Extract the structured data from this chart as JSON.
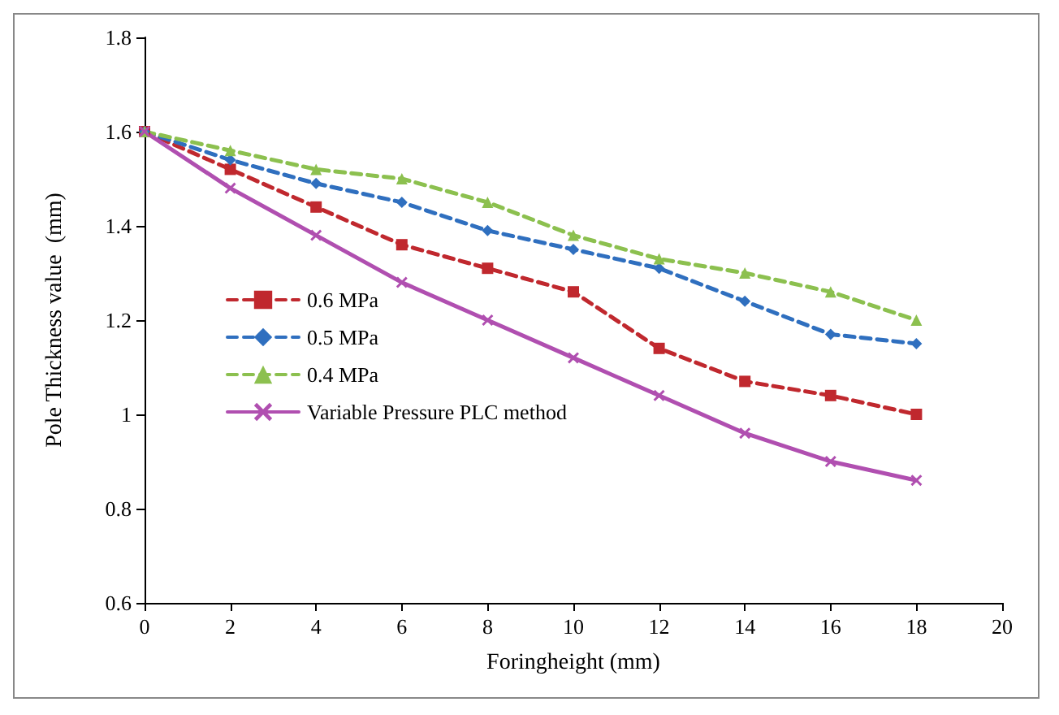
{
  "chart_data": {
    "type": "line",
    "xlabel": "Foringheight (mm)",
    "ylabel": "Pole Thickness value  (mm)",
    "x": [
      0,
      2,
      4,
      6,
      8,
      10,
      12,
      14,
      16,
      18
    ],
    "series": [
      {
        "name": "0.6 MPa",
        "color": "#c0282e",
        "marker": "square",
        "line_style": "dashed",
        "values": [
          1.6,
          1.52,
          1.44,
          1.36,
          1.31,
          1.26,
          1.14,
          1.07,
          1.04,
          1.0
        ]
      },
      {
        "name": "0.5 MPa",
        "color": "#2f6fbf",
        "marker": "diamond",
        "line_style": "dashed",
        "values": [
          1.6,
          1.54,
          1.49,
          1.45,
          1.39,
          1.35,
          1.31,
          1.24,
          1.17,
          1.15
        ]
      },
      {
        "name": "0.4 MPa",
        "color": "#8cc04f",
        "marker": "triangle",
        "line_style": "dashed",
        "values": [
          1.6,
          1.56,
          1.52,
          1.5,
          1.45,
          1.38,
          1.33,
          1.3,
          1.26,
          1.2
        ]
      },
      {
        "name": "Variable Pressure PLC method",
        "color": "#b04fb0",
        "marker": "cross",
        "line_style": "solid",
        "values": [
          1.6,
          1.48,
          1.38,
          1.28,
          1.2,
          1.12,
          1.04,
          0.96,
          0.9,
          0.86
        ]
      }
    ],
    "xlim": [
      0,
      20
    ],
    "xticks": [
      0,
      2,
      4,
      6,
      8,
      10,
      12,
      14,
      16,
      18,
      20
    ],
    "ylim": [
      0.6,
      1.8
    ],
    "yticks": [
      0.6,
      0.8,
      1,
      1.2,
      1.4,
      1.6,
      1.8
    ],
    "grid": false,
    "legend": "left"
  }
}
